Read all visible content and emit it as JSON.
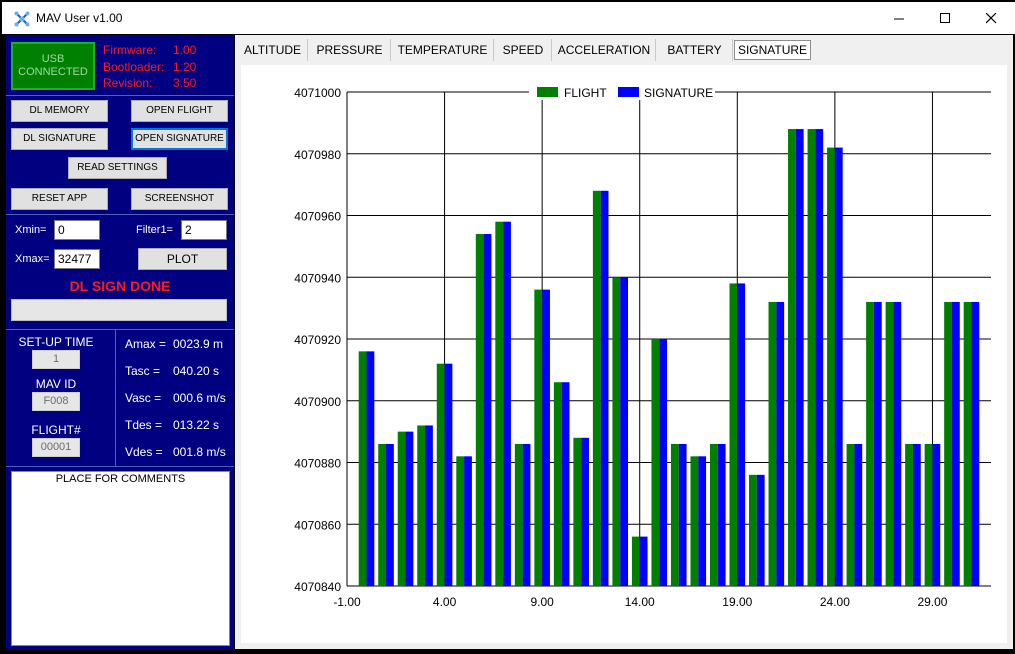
{
  "window": {
    "title": "MAV User v1.00"
  },
  "usb": {
    "line1": "USB",
    "line2": "CONNECTED"
  },
  "firmware": [
    {
      "label": "Firmware:",
      "value": "1.00"
    },
    {
      "label": "Bootloader:",
      "value": "1.20"
    },
    {
      "label": "Revision:",
      "value": "3.50"
    }
  ],
  "buttons": {
    "dl_memory": "DL MEMORY",
    "open_flight": "OPEN FLIGHT",
    "dl_signature": "DL SIGNATURE",
    "open_signature": "OPEN SIGNATURE",
    "read_settings": "READ SETTINGS",
    "reset_app": "RESET APP",
    "screenshot": "SCREENSHOT",
    "plot": "PLOT"
  },
  "controls": {
    "xmin_label": "Xmin=",
    "xmin_value": "0",
    "xmax_label": "Xmax=",
    "xmax_value": "32477",
    "filter1_label": "Filter1=",
    "filter1_value": "2"
  },
  "status_message": "DL SIGN DONE",
  "info": {
    "setup_time_label": "SET-UP TIME",
    "setup_time_value": "1",
    "mav_id_label": "MAV ID",
    "mav_id_value": "F008",
    "flight_label": "FLIGHT#",
    "flight_value": "00001"
  },
  "stats": [
    {
      "label": "Amax =",
      "value": "0023.9 m"
    },
    {
      "label": "Tasc =",
      "value": "040.20 s"
    },
    {
      "label": "Vasc =",
      "value": "000.6 m/s"
    },
    {
      "label": "Tdes =",
      "value": "013.22 s"
    },
    {
      "label": "Vdes =",
      "value": "001.8 m/s"
    }
  ],
  "comments_placeholder": "PLACE FOR COMMENTS",
  "tabs": [
    "ALTITUDE",
    "PRESSURE",
    "TEMPERATURE",
    "SPEED",
    "ACCELERATION",
    "BATTERY",
    "SIGNATURE"
  ],
  "selected_tab": "SIGNATURE",
  "colors": {
    "flight": "#008000",
    "signature": "#0000ff",
    "panel": "#000080",
    "alert": "#ff1a1a"
  },
  "chart_data": {
    "type": "bar",
    "x": [
      0,
      1,
      2,
      3,
      4,
      5,
      6,
      7,
      8,
      9,
      10,
      11,
      12,
      13,
      14,
      15,
      16,
      17,
      18,
      19,
      20,
      21,
      22,
      23,
      24,
      25,
      26,
      27,
      28,
      29,
      30,
      31
    ],
    "series": [
      {
        "name": "FLIGHT",
        "values": [
          4070916,
          4070886,
          4070890,
          4070892,
          4070912,
          4070882,
          4070954,
          4070958,
          4070886,
          4070936,
          4070906,
          4070888,
          4070968,
          4070940,
          4070856,
          4070920,
          4070886,
          4070882,
          4070886,
          4070938,
          4070876,
          4070932,
          4070988,
          4070988,
          4070982,
          4070886,
          4070932,
          4070932,
          4070886,
          4070886,
          4070932,
          4070932
        ]
      },
      {
        "name": "SIGNATURE",
        "values": [
          4070916,
          4070886,
          4070890,
          4070892,
          4070912,
          4070882,
          4070954,
          4070958,
          4070886,
          4070936,
          4070906,
          4070888,
          4070968,
          4070940,
          4070856,
          4070920,
          4070886,
          4070882,
          4070886,
          4070938,
          4070876,
          4070932,
          4070988,
          4070988,
          4070982,
          4070886,
          4070932,
          4070932,
          4070886,
          4070886,
          4070932,
          4070932
        ]
      }
    ],
    "xlim": [
      -1,
      32
    ],
    "ylim": [
      4070840,
      4071000
    ],
    "x_ticks": [
      "-1.00",
      "4.00",
      "9.00",
      "14.00",
      "19.00",
      "24.00",
      "29.00"
    ],
    "y_ticks": [
      "4070840",
      "4070860",
      "4070880",
      "4070900",
      "4070920",
      "4070940",
      "4070960",
      "4070980",
      "4071000"
    ],
    "grid": true,
    "legend_position": "top-center"
  }
}
